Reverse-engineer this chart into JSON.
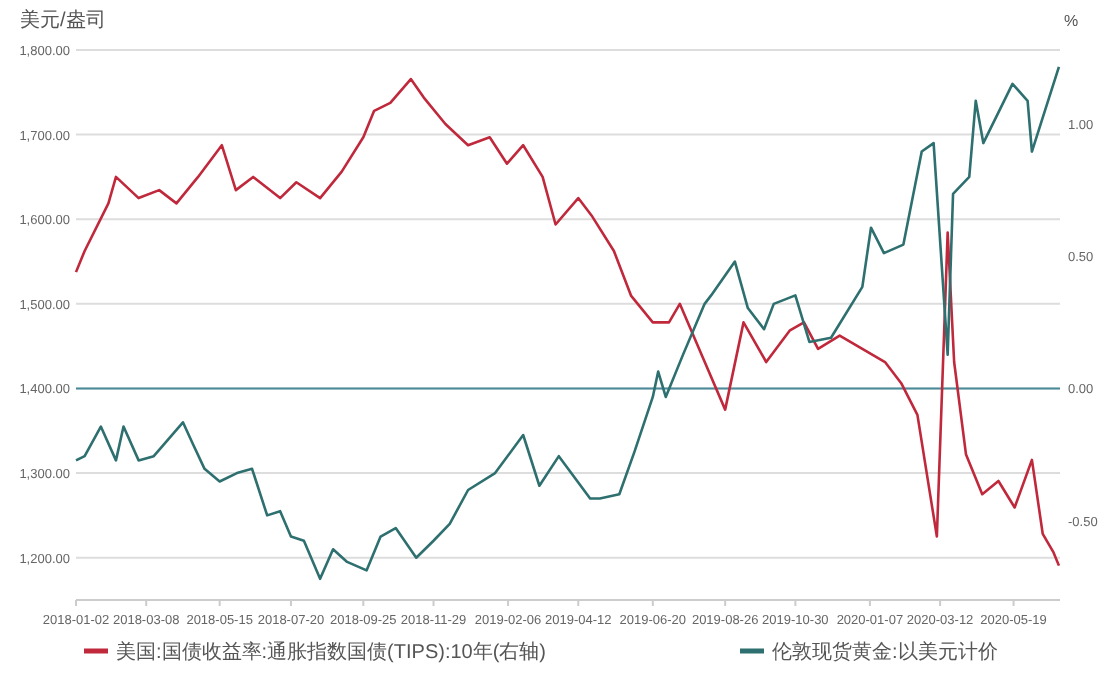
{
  "chart_data": {
    "type": "line",
    "ylabel": "美元/盎司",
    "y2label": "%",
    "legend": "bottom",
    "grid": "y",
    "xlim": [
      "2018-01-02",
      "2020-07-01"
    ],
    "xticks": [
      {
        "value": "2018-01-02",
        "label": "2018-01-02"
      },
      {
        "value": "2018-03-08",
        "label": "2018-03-08"
      },
      {
        "value": "2018-05-15",
        "label": "2018-05-15"
      },
      {
        "value": "2018-07-20",
        "label": "2018-07-20"
      },
      {
        "value": "2018-09-25",
        "label": "2018-09-25"
      },
      {
        "value": "2018-11-29",
        "label": "2018-11-29"
      },
      {
        "value": "2019-02-06",
        "label": "2019-02-06"
      },
      {
        "value": "2019-04-12",
        "label": "2019-04-12"
      },
      {
        "value": "2019-06-20",
        "label": "2019-06-20"
      },
      {
        "value": "2019-08-26",
        "label": "2019-08-26"
      },
      {
        "value": "2019-10-30",
        "label": "2019-10-30"
      },
      {
        "value": "2020-01-07",
        "label": "2020-01-07"
      },
      {
        "value": "2020-03-12",
        "label": "2020-03-12"
      },
      {
        "value": "2020-05-19",
        "label": "2020-05-19"
      }
    ],
    "ylim": [
      1150,
      1800
    ],
    "yticks": [
      {
        "value": 1200,
        "label": "1,200.00"
      },
      {
        "value": 1300,
        "label": "1,300.00"
      },
      {
        "value": 1400,
        "label": "1,400.00"
      },
      {
        "value": 1500,
        "label": "1,500.00"
      },
      {
        "value": 1600,
        "label": "1,600.00"
      },
      {
        "value": 1700,
        "label": "1,700.00"
      },
      {
        "value": 1800,
        "label": "1,800.00"
      }
    ],
    "y2lim": [
      -0.8,
      1.28
    ],
    "y2ticks": [
      {
        "value": -0.5,
        "label": "-0.50"
      },
      {
        "value": 0,
        "label": "0.00"
      },
      {
        "value": 0.5,
        "label": "0.50"
      },
      {
        "value": 1,
        "label": "1.00"
      }
    ],
    "ref_lines": [
      {
        "axis": "y2",
        "value": 0,
        "color": "#4a8a9a"
      }
    ],
    "series": [
      {
        "name": "美国:国债收益率:通胀指数国债(TIPS):10年(右轴)",
        "color": "#c0283c",
        "axis": "y2",
        "x": [
          "2018-01-02",
          "2018-01-10",
          "2018-02-01",
          "2018-02-08",
          "2018-03-01",
          "2018-03-20",
          "2018-04-05",
          "2018-04-25",
          "2018-05-17",
          "2018-05-30",
          "2018-06-15",
          "2018-07-10",
          "2018-07-25",
          "2018-08-16",
          "2018-09-05",
          "2018-09-25",
          "2018-10-05",
          "2018-10-20",
          "2018-11-08",
          "2018-11-20",
          "2018-12-10",
          "2018-12-31",
          "2019-01-20",
          "2019-02-05",
          "2019-02-20",
          "2019-03-10",
          "2019-03-22",
          "2019-04-12",
          "2019-04-25",
          "2019-05-15",
          "2019-05-31",
          "2019-06-20",
          "2019-07-05",
          "2019-07-15",
          "2019-08-05",
          "2019-08-26",
          "2019-09-12",
          "2019-10-03",
          "2019-10-25",
          "2019-11-07",
          "2019-11-20",
          "2019-12-10",
          "2019-12-31",
          "2020-01-21",
          "2020-02-05",
          "2020-02-20",
          "2020-03-09",
          "2020-03-19",
          "2020-03-25",
          "2020-04-05",
          "2020-04-20",
          "2020-05-05",
          "2020-05-20",
          "2020-06-05",
          "2020-06-15",
          "2020-06-25",
          "2020-06-30"
        ],
        "values": [
          0.44,
          0.52,
          0.7,
          0.8,
          0.72,
          0.75,
          0.7,
          0.8,
          0.92,
          0.75,
          0.8,
          0.72,
          0.78,
          0.72,
          0.82,
          0.95,
          1.05,
          1.08,
          1.17,
          1.1,
          1.0,
          0.92,
          0.95,
          0.85,
          0.92,
          0.8,
          0.62,
          0.72,
          0.65,
          0.52,
          0.35,
          0.25,
          0.25,
          0.32,
          0.12,
          -0.08,
          0.25,
          0.1,
          0.22,
          0.25,
          0.15,
          0.2,
          0.15,
          0.1,
          0.02,
          -0.1,
          -0.56,
          0.59,
          0.1,
          -0.25,
          -0.4,
          -0.35,
          -0.45,
          -0.27,
          -0.55,
          -0.62,
          -0.67
        ]
      },
      {
        "name": "伦敦现货黄金:以美元计价",
        "color": "#2e6f6f",
        "x": [
          "2018-01-02",
          "2018-01-10",
          "2018-01-25",
          "2018-02-08",
          "2018-02-15",
          "2018-03-01",
          "2018-03-15",
          "2018-04-11",
          "2018-04-20",
          "2018-05-01",
          "2018-05-15",
          "2018-05-31",
          "2018-06-14",
          "2018-06-28",
          "2018-07-10",
          "2018-07-20",
          "2018-08-01",
          "2018-08-16",
          "2018-08-28",
          "2018-09-10",
          "2018-09-28",
          "2018-10-11",
          "2018-10-25",
          "2018-11-13",
          "2018-11-29",
          "2018-12-14",
          "2018-12-31",
          "2019-01-25",
          "2019-02-20",
          "2019-03-07",
          "2019-03-25",
          "2019-04-23",
          "2019-05-02",
          "2019-05-20",
          "2019-06-03",
          "2019-06-20",
          "2019-06-25",
          "2019-07-02",
          "2019-07-18",
          "2019-08-07",
          "2019-08-13",
          "2019-09-04",
          "2019-09-16",
          "2019-10-01",
          "2019-10-10",
          "2019-10-30",
          "2019-11-12",
          "2019-12-02",
          "2019-12-31",
          "2020-01-08",
          "2020-01-20",
          "2020-02-07",
          "2020-02-24",
          "2020-03-06",
          "2020-03-19",
          "2020-03-24",
          "2020-04-08",
          "2020-04-14",
          "2020-04-21",
          "2020-05-18",
          "2020-06-01",
          "2020-06-05",
          "2020-06-15",
          "2020-06-30"
        ],
        "values": [
          1315,
          1320,
          1355,
          1315,
          1355,
          1315,
          1320,
          1360,
          1335,
          1305,
          1290,
          1300,
          1305,
          1250,
          1255,
          1225,
          1220,
          1175,
          1210,
          1195,
          1185,
          1225,
          1235,
          1200,
          1220,
          1240,
          1280,
          1300,
          1345,
          1285,
          1320,
          1270,
          1270,
          1275,
          1325,
          1390,
          1420,
          1390,
          1440,
          1500,
          1510,
          1550,
          1495,
          1470,
          1500,
          1510,
          1455,
          1460,
          1520,
          1590,
          1560,
          1570,
          1680,
          1690,
          1440,
          1630,
          1650,
          1740,
          1690,
          1760,
          1740,
          1680,
          1720,
          1780
        ]
      }
    ]
  }
}
